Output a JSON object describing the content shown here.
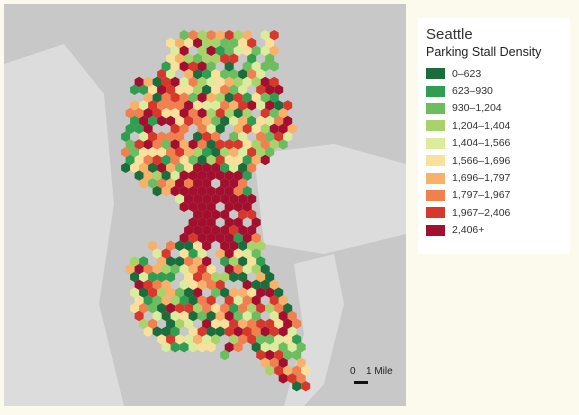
{
  "legend": {
    "title": "Seattle",
    "subtitle": "Parking Stall Density",
    "items": [
      {
        "label": "0–623",
        "color": "#1b6d3b"
      },
      {
        "label": "623–930",
        "color": "#2f9e50"
      },
      {
        "label": "930–1,204",
        "color": "#6cbd5f"
      },
      {
        "label": "1,204–1,404",
        "color": "#a8d36b"
      },
      {
        "label": "1,404–1,566",
        "color": "#dcec9d"
      },
      {
        "label": "1,566–1,696",
        "color": "#fbe09c"
      },
      {
        "label": "1,696–1,797",
        "color": "#f8b16a"
      },
      {
        "label": "1,797–1,967",
        "color": "#f1804f"
      },
      {
        "label": "1,967–2,406",
        "color": "#d6392c"
      },
      {
        "label": "2,406+",
        "color": "#a30f2e"
      }
    ]
  },
  "scale": {
    "start": "0",
    "end": "1 Mile"
  }
}
